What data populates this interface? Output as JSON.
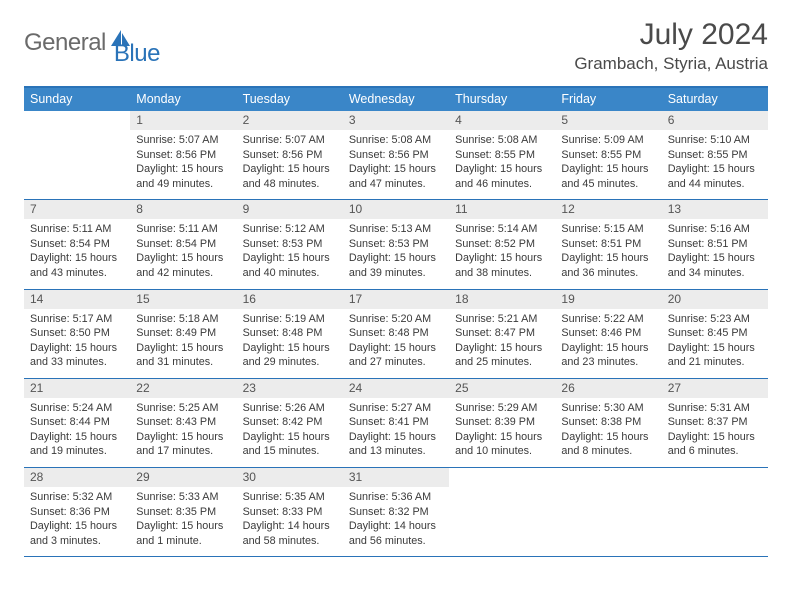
{
  "logo": {
    "text1": "General",
    "text2": "Blue"
  },
  "title": "July 2024",
  "location": "Grambach, Styria, Austria",
  "colors": {
    "accent": "#2a73b8",
    "header_bg": "#3a86c8",
    "daynum_bg": "#ececec",
    "text": "#3a3a3a"
  },
  "day_names": [
    "Sunday",
    "Monday",
    "Tuesday",
    "Wednesday",
    "Thursday",
    "Friday",
    "Saturday"
  ],
  "weeks": [
    [
      {
        "blank": true
      },
      {
        "n": "1",
        "sr": "Sunrise: 5:07 AM",
        "ss": "Sunset: 8:56 PM",
        "d1": "Daylight: 15 hours",
        "d2": "and 49 minutes."
      },
      {
        "n": "2",
        "sr": "Sunrise: 5:07 AM",
        "ss": "Sunset: 8:56 PM",
        "d1": "Daylight: 15 hours",
        "d2": "and 48 minutes."
      },
      {
        "n": "3",
        "sr": "Sunrise: 5:08 AM",
        "ss": "Sunset: 8:56 PM",
        "d1": "Daylight: 15 hours",
        "d2": "and 47 minutes."
      },
      {
        "n": "4",
        "sr": "Sunrise: 5:08 AM",
        "ss": "Sunset: 8:55 PM",
        "d1": "Daylight: 15 hours",
        "d2": "and 46 minutes."
      },
      {
        "n": "5",
        "sr": "Sunrise: 5:09 AM",
        "ss": "Sunset: 8:55 PM",
        "d1": "Daylight: 15 hours",
        "d2": "and 45 minutes."
      },
      {
        "n": "6",
        "sr": "Sunrise: 5:10 AM",
        "ss": "Sunset: 8:55 PM",
        "d1": "Daylight: 15 hours",
        "d2": "and 44 minutes."
      }
    ],
    [
      {
        "n": "7",
        "sr": "Sunrise: 5:11 AM",
        "ss": "Sunset: 8:54 PM",
        "d1": "Daylight: 15 hours",
        "d2": "and 43 minutes."
      },
      {
        "n": "8",
        "sr": "Sunrise: 5:11 AM",
        "ss": "Sunset: 8:54 PM",
        "d1": "Daylight: 15 hours",
        "d2": "and 42 minutes."
      },
      {
        "n": "9",
        "sr": "Sunrise: 5:12 AM",
        "ss": "Sunset: 8:53 PM",
        "d1": "Daylight: 15 hours",
        "d2": "and 40 minutes."
      },
      {
        "n": "10",
        "sr": "Sunrise: 5:13 AM",
        "ss": "Sunset: 8:53 PM",
        "d1": "Daylight: 15 hours",
        "d2": "and 39 minutes."
      },
      {
        "n": "11",
        "sr": "Sunrise: 5:14 AM",
        "ss": "Sunset: 8:52 PM",
        "d1": "Daylight: 15 hours",
        "d2": "and 38 minutes."
      },
      {
        "n": "12",
        "sr": "Sunrise: 5:15 AM",
        "ss": "Sunset: 8:51 PM",
        "d1": "Daylight: 15 hours",
        "d2": "and 36 minutes."
      },
      {
        "n": "13",
        "sr": "Sunrise: 5:16 AM",
        "ss": "Sunset: 8:51 PM",
        "d1": "Daylight: 15 hours",
        "d2": "and 34 minutes."
      }
    ],
    [
      {
        "n": "14",
        "sr": "Sunrise: 5:17 AM",
        "ss": "Sunset: 8:50 PM",
        "d1": "Daylight: 15 hours",
        "d2": "and 33 minutes."
      },
      {
        "n": "15",
        "sr": "Sunrise: 5:18 AM",
        "ss": "Sunset: 8:49 PM",
        "d1": "Daylight: 15 hours",
        "d2": "and 31 minutes."
      },
      {
        "n": "16",
        "sr": "Sunrise: 5:19 AM",
        "ss": "Sunset: 8:48 PM",
        "d1": "Daylight: 15 hours",
        "d2": "and 29 minutes."
      },
      {
        "n": "17",
        "sr": "Sunrise: 5:20 AM",
        "ss": "Sunset: 8:48 PM",
        "d1": "Daylight: 15 hours",
        "d2": "and 27 minutes."
      },
      {
        "n": "18",
        "sr": "Sunrise: 5:21 AM",
        "ss": "Sunset: 8:47 PM",
        "d1": "Daylight: 15 hours",
        "d2": "and 25 minutes."
      },
      {
        "n": "19",
        "sr": "Sunrise: 5:22 AM",
        "ss": "Sunset: 8:46 PM",
        "d1": "Daylight: 15 hours",
        "d2": "and 23 minutes."
      },
      {
        "n": "20",
        "sr": "Sunrise: 5:23 AM",
        "ss": "Sunset: 8:45 PM",
        "d1": "Daylight: 15 hours",
        "d2": "and 21 minutes."
      }
    ],
    [
      {
        "n": "21",
        "sr": "Sunrise: 5:24 AM",
        "ss": "Sunset: 8:44 PM",
        "d1": "Daylight: 15 hours",
        "d2": "and 19 minutes."
      },
      {
        "n": "22",
        "sr": "Sunrise: 5:25 AM",
        "ss": "Sunset: 8:43 PM",
        "d1": "Daylight: 15 hours",
        "d2": "and 17 minutes."
      },
      {
        "n": "23",
        "sr": "Sunrise: 5:26 AM",
        "ss": "Sunset: 8:42 PM",
        "d1": "Daylight: 15 hours",
        "d2": "and 15 minutes."
      },
      {
        "n": "24",
        "sr": "Sunrise: 5:27 AM",
        "ss": "Sunset: 8:41 PM",
        "d1": "Daylight: 15 hours",
        "d2": "and 13 minutes."
      },
      {
        "n": "25",
        "sr": "Sunrise: 5:29 AM",
        "ss": "Sunset: 8:39 PM",
        "d1": "Daylight: 15 hours",
        "d2": "and 10 minutes."
      },
      {
        "n": "26",
        "sr": "Sunrise: 5:30 AM",
        "ss": "Sunset: 8:38 PM",
        "d1": "Daylight: 15 hours",
        "d2": "and 8 minutes."
      },
      {
        "n": "27",
        "sr": "Sunrise: 5:31 AM",
        "ss": "Sunset: 8:37 PM",
        "d1": "Daylight: 15 hours",
        "d2": "and 6 minutes."
      }
    ],
    [
      {
        "n": "28",
        "sr": "Sunrise: 5:32 AM",
        "ss": "Sunset: 8:36 PM",
        "d1": "Daylight: 15 hours",
        "d2": "and 3 minutes."
      },
      {
        "n": "29",
        "sr": "Sunrise: 5:33 AM",
        "ss": "Sunset: 8:35 PM",
        "d1": "Daylight: 15 hours",
        "d2": "and 1 minute."
      },
      {
        "n": "30",
        "sr": "Sunrise: 5:35 AM",
        "ss": "Sunset: 8:33 PM",
        "d1": "Daylight: 14 hours",
        "d2": "and 58 minutes."
      },
      {
        "n": "31",
        "sr": "Sunrise: 5:36 AM",
        "ss": "Sunset: 8:32 PM",
        "d1": "Daylight: 14 hours",
        "d2": "and 56 minutes."
      },
      {
        "blank": true
      },
      {
        "blank": true
      },
      {
        "blank": true
      }
    ]
  ]
}
